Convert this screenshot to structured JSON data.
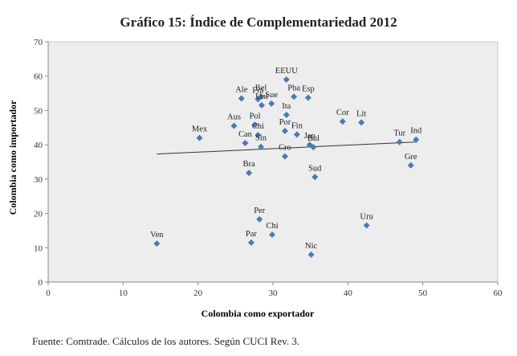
{
  "chart_data": {
    "type": "scatter",
    "title": "Gráfico 15: Índice de Complementariedad 2012",
    "xlabel": "Colombia como exportador",
    "ylabel": "Colombia como importador",
    "xlim": [
      0,
      60
    ],
    "ylim": [
      0,
      70
    ],
    "xticks": [
      "0",
      "10",
      "20",
      "30",
      "40",
      "50",
      "60"
    ],
    "yticks": [
      "0",
      "10",
      "20",
      "30",
      "40",
      "50",
      "60",
      "70"
    ],
    "grid": false,
    "marker_color": "#4a7ab8",
    "trendline": {
      "x": [
        14.5,
        49
      ],
      "y": [
        37.3,
        40.8
      ]
    },
    "points": [
      {
        "label": "EEUU",
        "x": 31.8,
        "y": 59
      },
      {
        "label": "Ale",
        "x": 25.8,
        "y": 53.5
      },
      {
        "label": "Fra",
        "x": 28.0,
        "y": 53.3
      },
      {
        "label": "Bel",
        "x": 28.4,
        "y": 54.0
      },
      {
        "label": "Uni",
        "x": 28.5,
        "y": 51.5
      },
      {
        "label": "Sue",
        "x": 29.8,
        "y": 52.0
      },
      {
        "label": "Pba",
        "x": 32.8,
        "y": 54.0
      },
      {
        "label": "Esp",
        "x": 34.7,
        "y": 53.7
      },
      {
        "label": "Ita",
        "x": 31.8,
        "y": 48.7
      },
      {
        "label": "Aus",
        "x": 24.8,
        "y": 45.5
      },
      {
        "label": "Pol",
        "x": 27.6,
        "y": 45.8
      },
      {
        "label": "Chi",
        "x": 28.0,
        "y": 42.8
      },
      {
        "label": "Por",
        "x": 31.6,
        "y": 44.0
      },
      {
        "label": "Fin",
        "x": 33.2,
        "y": 43.0
      },
      {
        "label": "Jap",
        "x": 34.9,
        "y": 40.0
      },
      {
        "label": "Bul",
        "x": 35.4,
        "y": 39.3
      },
      {
        "label": "Mex",
        "x": 20.2,
        "y": 42.0
      },
      {
        "label": "Can",
        "x": 26.3,
        "y": 40.5
      },
      {
        "label": "Sin",
        "x": 28.4,
        "y": 39.4
      },
      {
        "label": "Cro",
        "x": 31.6,
        "y": 36.6
      },
      {
        "label": "Cor",
        "x": 39.3,
        "y": 46.8
      },
      {
        "label": "Lit",
        "x": 41.8,
        "y": 46.5
      },
      {
        "label": "Tur",
        "x": 46.9,
        "y": 40.8
      },
      {
        "label": "Ind",
        "x": 49.1,
        "y": 41.5
      },
      {
        "label": "Gre",
        "x": 48.4,
        "y": 34.0
      },
      {
        "label": "Bra",
        "x": 26.8,
        "y": 31.8
      },
      {
        "label": "Sud",
        "x": 35.6,
        "y": 30.6
      },
      {
        "label": "Per",
        "x": 28.2,
        "y": 18.3
      },
      {
        "label": "Chi",
        "x": 29.9,
        "y": 13.8
      },
      {
        "label": "Par",
        "x": 27.1,
        "y": 11.5
      },
      {
        "label": "Uru",
        "x": 42.5,
        "y": 16.5
      },
      {
        "label": "Ven",
        "x": 14.5,
        "y": 11.2
      },
      {
        "label": "Nic",
        "x": 35.1,
        "y": 8.0
      }
    ],
    "source": "Fuente: Comtrade. Cálculos de los autores. Según CUCI Rev. 3."
  }
}
